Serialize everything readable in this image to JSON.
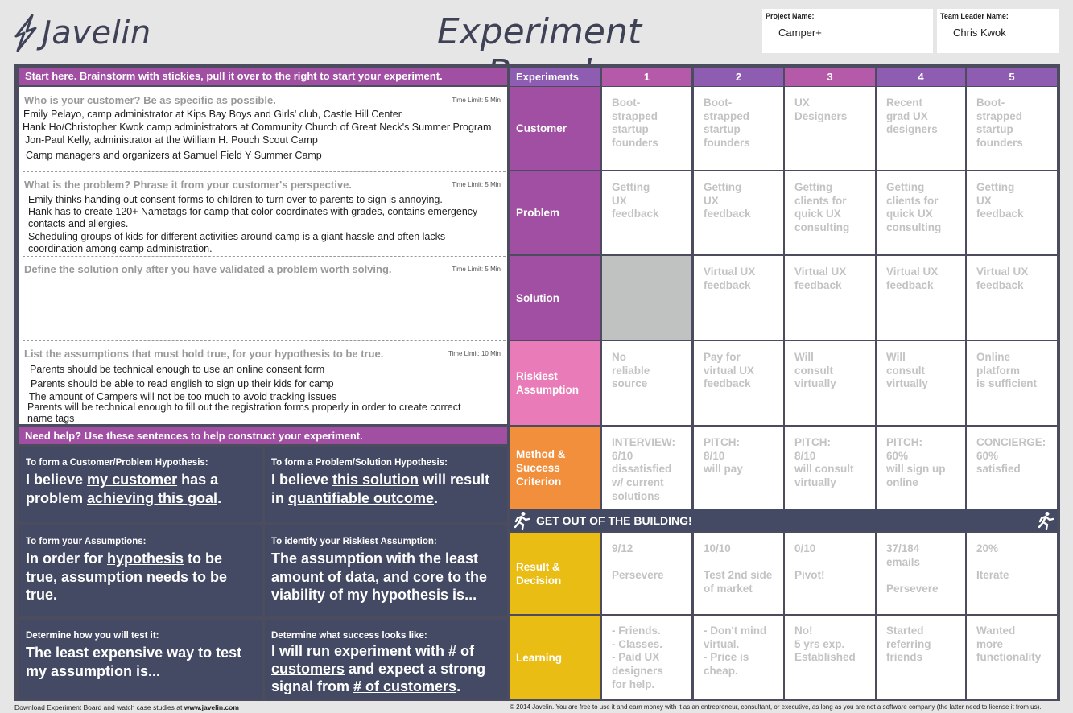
{
  "header": {
    "logo_text": "Javelin",
    "title": "Experiment Board",
    "project_label": "Project Name:",
    "project_value": "Camper+",
    "leader_label": "Team Leader Name:",
    "leader_value": "Chris Kwok"
  },
  "brainstorm": {
    "header": "Start here. Brainstorm with stickies, pull it over to the right to start your experiment.",
    "sections": [
      {
        "question": "Who is your customer? Be as specific as possible.",
        "time_limit": "Time Limit: 5 Min",
        "lines": [
          "Emily Pelayo, camp administrator at Kips Bay Boys and Girls' club, Castle Hill Center",
          "Hank Ho/Christopher Kwok camp administrators at Community Church of Great Neck's Summer Program",
          "Jon-Paul Kelly, administrator at the William H. Pouch Scout Camp",
          "Camp managers and organizers at Samuel Field Y Summer Camp"
        ]
      },
      {
        "question": "What is the problem? Phrase it from your customer's perspective.",
        "time_limit": "Time Limit: 5 Min",
        "lines": [
          "Emily thinks handing out consent forms to children to turn over to parents to sign is annoying.",
          "Hank has to create 120+ Nametags for camp that color coordinates with grades, contains emergency",
          "contacts and allergies.",
          "Scheduling groups of kids for different activities around camp is a giant hassle and often lacks",
          "coordination among camp administration."
        ]
      },
      {
        "question": "Define the solution only after you have validated a problem worth solving.",
        "time_limit": "Time Limit: 5 Min",
        "lines": []
      },
      {
        "question": "List the assumptions that must hold true, for your hypothesis to be true.",
        "time_limit": "Time Limit: 10 Min",
        "lines": [
          "Parents should be technical enough to use an online consent form",
          "Parents should be able to read english to sign up their kids for camp",
          "The amount of Campers will not be too much to avoid tracking issues",
          "Parents will be technical enough to fill out the registration forms properly in order to create correct",
          "name tags"
        ]
      }
    ]
  },
  "help": {
    "header": "Need help? Use these sentences to help construct your experiment.",
    "boxes": [
      {
        "heading": "To form a Customer/Problem Hypothesis:",
        "parts": [
          "I believe ",
          "my customer",
          " has a problem ",
          "achieving this goal",
          "."
        ]
      },
      {
        "heading": "To form a Problem/Solution Hypothesis:",
        "parts": [
          "I believe ",
          "this solution",
          " will result in ",
          "quantifiable outcome",
          "."
        ]
      },
      {
        "heading": "To form your Assumptions:",
        "parts": [
          "In order for ",
          "hypothesis",
          " to be true, ",
          "assumption",
          " needs to be true."
        ]
      },
      {
        "heading": "To identify your Riskiest Assumption:",
        "text": "The assumption with the least amount of data, and core to the viability of my hypothesis is..."
      },
      {
        "heading": "Determine how you will test it:",
        "text": "The least expensive way to test my assumption is..."
      },
      {
        "heading": "Determine what success looks like:",
        "parts": [
          "I will run experiment with ",
          "# of customers",
          " and expect a strong signal from ",
          "# of customers",
          "."
        ]
      }
    ]
  },
  "experiments": {
    "header": "Experiments",
    "columns": [
      "1",
      "2",
      "3",
      "4",
      "5"
    ],
    "column_colors": [
      "#b55aa8",
      "#8e5cb0",
      "#b55aa8",
      "#8e5cb0",
      "#8e5cb0"
    ],
    "rows": [
      {
        "label": "Customer",
        "color": "#a14fa3",
        "cells": [
          "Boot-\nstrapped\nstartup\nfounders",
          "Boot-\nstrapped\nstartup\nfounders",
          "UX\nDesigners",
          "Recent\ngrad UX\ndesigners",
          "Boot-\nstrapped\nstartup\nfounders"
        ]
      },
      {
        "label": "Problem",
        "color": "#a14fa3",
        "cells": [
          "Getting\nUX\nfeedback",
          "Getting\nUX\nfeedback",
          "Getting\nclients for\nquick UX\nconsulting",
          "Getting\nclients for\nquick UX\nconsulting",
          "Getting\nUX\nfeedback"
        ]
      },
      {
        "label": "Solution",
        "color": "#a14fa3",
        "cells": [
          "",
          "Virtual UX\nfeedback",
          "Virtual UX\nfeedback",
          "Virtual UX\nfeedback",
          "Virtual UX\nfeedback"
        ]
      },
      {
        "label": "Riskiest\nAssumption",
        "color": "#e97cb8",
        "cells": [
          "No\nreliable\nsource",
          "Pay for\nvirtual UX\nfeedback",
          "Will\nconsult\nvirtually",
          "Will\nconsult\nvirtually",
          "Online\nplatform\nis sufficient"
        ]
      },
      {
        "label": "Method &\nSuccess\nCriterion",
        "color": "#f28f3c",
        "cells": [
          "INTERVIEW:\n6/10\ndissatisfied\nw/ current\nsolutions",
          "PITCH:\n8/10\nwill pay",
          "PITCH:\n8/10\nwill consult\nvirtually",
          "PITCH:\n60%\nwill sign up\nonline",
          "CONCIERGE:\n60%\nsatisfied"
        ]
      },
      {
        "label": "Result &\nDecision",
        "color": "#e9bd14",
        "cells": [
          "9/12\n\nPersevere",
          "10/10\n\nTest 2nd side\nof market",
          "0/10\n\nPivot!",
          "37/184\nemails\n\nPersevere",
          "20%\n\nIterate"
        ]
      },
      {
        "label": "Learning",
        "color": "#e9bd14",
        "cells": [
          "- Friends.\n- Classes.\n- Paid UX\n  designers\n  for help.",
          "- Don't mind\n  virtual.\n- Price is\n  cheap.",
          "No!\n5 yrs exp.\nEstablished",
          "Started\nreferring\nfriends",
          "Wanted\nmore\nfunctionality"
        ]
      }
    ],
    "get_out": "GET OUT OF THE BUILDING!"
  },
  "footer": {
    "left_prefix": "Download Experiment Board and watch case studies at ",
    "left_link": "www.javelin.com",
    "right": "© 2014 Javelin. You are free to use it and earn money with it as an entrepreneur, consultant, or executive, as long as you are not a software company (the latter need to license it from us)."
  }
}
